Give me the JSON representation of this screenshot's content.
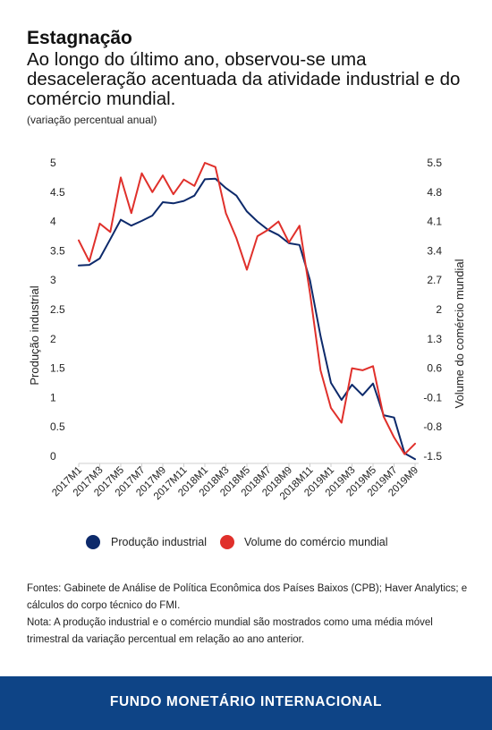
{
  "title": "Estagnação",
  "subtitle": "Ao longo do último ano, observou-se uma desaceleração acentuada da atividade industrial e do comércio mundial.",
  "units": "(variação percentual anual)",
  "chart_data": {
    "type": "line",
    "x": [
      "2017M1",
      "2017M2",
      "2017M3",
      "2017M4",
      "2017M5",
      "2017M6",
      "2017M7",
      "2017M8",
      "2017M9",
      "2017M10",
      "2017M11",
      "2017M12",
      "2018M1",
      "2018M2",
      "2018M3",
      "2018M4",
      "2018M5",
      "2018M6",
      "2018M7",
      "2018M8",
      "2018M9",
      "2018M10",
      "2018M11",
      "2018M12",
      "2019M1",
      "2019M2",
      "2019M3",
      "2019M4",
      "2019M5",
      "2019M6",
      "2019M7",
      "2019M8",
      "2019M9"
    ],
    "x_tick_labels": [
      "2017M1",
      "2017M3",
      "2017M5",
      "2017M7",
      "2017M9",
      "2017M11",
      "2018M1",
      "2018M3",
      "2018M5",
      "2018M7",
      "2018M9",
      "2018M11",
      "2019M1",
      "2019M3",
      "2019M5",
      "2019M7",
      "2019M9"
    ],
    "left_axis": {
      "label": "Produção industrial",
      "ticks": [
        "5",
        "4.5",
        "4",
        "3.5",
        "3",
        "2.5",
        "2",
        "1.5",
        "1",
        "0.5",
        "0"
      ],
      "ylim": [
        0,
        5
      ]
    },
    "right_axis": {
      "label": "Volume do comércio mundial",
      "ticks": [
        "5.5",
        "4.8",
        "4.1",
        "3.4",
        "2.7",
        "2",
        "1.3",
        "0.6",
        "-0.1",
        "-0.8",
        "-1.5"
      ],
      "ylim": [
        -1.5,
        5.5
      ]
    },
    "series": [
      {
        "name": "Produção industrial",
        "axis": "left",
        "color": "#0d2a6b",
        "values": [
          3.25,
          3.26,
          3.37,
          3.7,
          4.03,
          3.93,
          4.01,
          4.1,
          4.33,
          4.31,
          4.35,
          4.44,
          4.72,
          4.73,
          4.57,
          4.44,
          4.17,
          4.0,
          3.86,
          3.77,
          3.63,
          3.6,
          3.0,
          2.05,
          1.25,
          0.96,
          1.22,
          1.04,
          1.24,
          0.7,
          0.66,
          0.05,
          -0.05
        ]
      },
      {
        "name": "Volume do comércio mundial",
        "axis": "right",
        "color": "#e0302b",
        "values": [
          3.65,
          3.15,
          4.05,
          3.85,
          5.15,
          4.3,
          5.25,
          4.8,
          5.2,
          4.75,
          5.1,
          4.95,
          5.5,
          5.4,
          4.3,
          3.7,
          2.95,
          3.75,
          3.9,
          4.1,
          3.6,
          4.0,
          2.4,
          0.55,
          -0.35,
          -0.7,
          0.6,
          0.55,
          0.65,
          -0.55,
          -1.05,
          -1.45,
          -1.2
        ]
      }
    ],
    "grid": false,
    "legend_position": "bottom"
  },
  "legend": {
    "item1": "Produção industrial",
    "item2": "Volume do comércio mundial"
  },
  "notes": {
    "sources": "Fontes: Gabinete de Análise de Política Econômica dos Países Baixos (CPB); Haver Analytics; e cálculos do corpo técnico do FMI.",
    "note": "Nota: A produção industrial e o comércio mundial são mostrados como uma média móvel trimestral da variação percentual em relação ao ano anterior."
  },
  "footer": "FUNDO MONETÁRIO INTERNACIONAL",
  "colors": {
    "navy": "#0d2a6b",
    "red": "#e0302b",
    "footer_bg": "#0e4486"
  }
}
